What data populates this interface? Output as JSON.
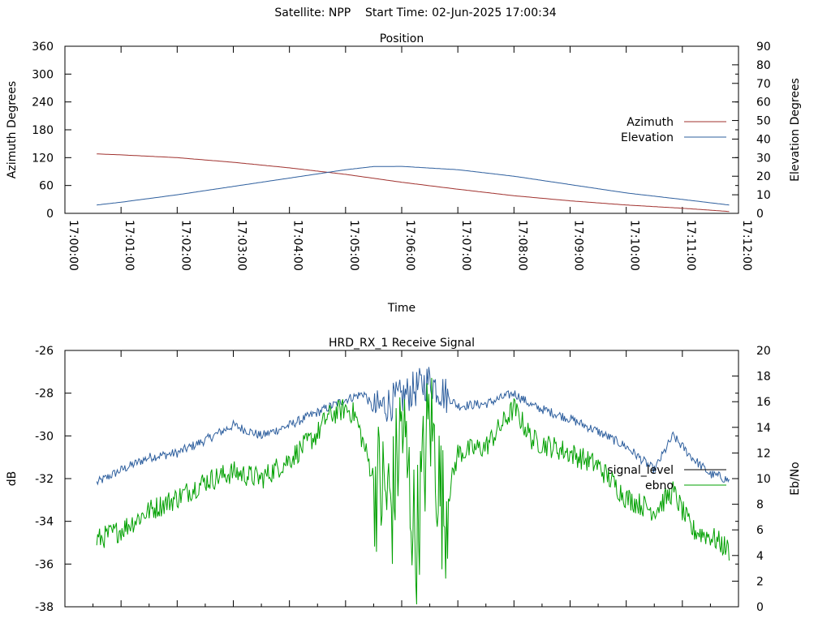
{
  "header": {
    "title": "Satellite: NPP    Start Time: 02-Jun-2025 17:00:34"
  },
  "chart_data": [
    {
      "type": "line",
      "title": "Position",
      "xlabel": "Time",
      "ylabel": "Azimuth Degrees",
      "y2label": "Elevation Degrees",
      "xlim_seconds": [
        0,
        720
      ],
      "ylim": [
        0,
        360
      ],
      "y2lim": [
        0,
        90
      ],
      "yticks": [
        "0",
        "60",
        "120",
        "180",
        "240",
        "300",
        "360"
      ],
      "y2ticks": [
        "0",
        "10",
        "20",
        "30",
        "40",
        "50",
        "60",
        "70",
        "80",
        "90"
      ],
      "xticks": [
        "17:00:00",
        "17:01:00",
        "17:02:00",
        "17:03:00",
        "17:04:00",
        "17:05:00",
        "17:06:00",
        "17:07:00",
        "17:08:00",
        "17:09:00",
        "17:10:00",
        "17:11:00",
        "17:12:00"
      ],
      "legend_position": "right",
      "grid": false,
      "series": [
        {
          "name": "Azimuth",
          "axis": "y",
          "color": "#a0312e",
          "x": [
            34,
            60,
            120,
            180,
            240,
            270,
            300,
            360,
            420,
            480,
            540,
            600,
            660,
            710
          ],
          "y": [
            128,
            126,
            120,
            110,
            98,
            91,
            84,
            67,
            52,
            38,
            27,
            18,
            11,
            4
          ]
        },
        {
          "name": "Elevation",
          "axis": "y2",
          "color": "#2e5f9e",
          "x": [
            34,
            60,
            120,
            180,
            240,
            300,
            330,
            360,
            420,
            480,
            540,
            600,
            660,
            710
          ],
          "y": [
            4.5,
            6,
            10,
            14.5,
            19,
            23.5,
            25.2,
            25.3,
            23.5,
            20,
            15.5,
            11,
            7.5,
            4.5
          ]
        }
      ]
    },
    {
      "type": "line",
      "title": "HRD_RX_1 Receive Signal",
      "xlabel": "",
      "ylabel": "dB",
      "y2label": "Eb/No",
      "xlim_seconds": [
        0,
        720
      ],
      "ylim": [
        -38,
        -26
      ],
      "y2lim": [
        0,
        20
      ],
      "yticks": [
        "-38",
        "-36",
        "-34",
        "-32",
        "-30",
        "-28",
        "-26"
      ],
      "y2ticks": [
        "0",
        "2",
        "4",
        "6",
        "8",
        "10",
        "12",
        "14",
        "16",
        "18",
        "20"
      ],
      "legend_position": "right",
      "grid": false,
      "series": [
        {
          "name": "signal_level",
          "axis": "y",
          "color": "#2e5f9e",
          "x": [
            34,
            60,
            90,
            120,
            150,
            180,
            210,
            240,
            270,
            300,
            320,
            330,
            360,
            390,
            420,
            450,
            480,
            500,
            540,
            570,
            600,
            630,
            650,
            670,
            690,
            700,
            710
          ],
          "y": [
            -32.2,
            -31.6,
            -31.0,
            -30.8,
            -30.2,
            -29.5,
            -30.0,
            -29.5,
            -28.9,
            -28.3,
            -28.0,
            -28.8,
            -28.2,
            -27.4,
            -28.6,
            -28.5,
            -28.0,
            -28.6,
            -29.2,
            -29.8,
            -30.5,
            -31.6,
            -30.0,
            -31.0,
            -31.8,
            -31.9,
            -32.1
          ]
        },
        {
          "name": "ebno",
          "axis": "y2",
          "color": "#00a000",
          "x": [
            34,
            60,
            90,
            120,
            150,
            180,
            210,
            240,
            270,
            280,
            300,
            310,
            320,
            330,
            340,
            350,
            360,
            375,
            390,
            405,
            420,
            450,
            480,
            500,
            540,
            570,
            600,
            630,
            650,
            670,
            690,
            700,
            710
          ],
          "y": [
            5.2,
            6.0,
            7.5,
            8.5,
            9.8,
            10.5,
            10.0,
            11.5,
            13.5,
            14.8,
            15.5,
            15.0,
            12.5,
            10.0,
            9.0,
            8.0,
            14.5,
            5.0,
            15.0,
            7.0,
            12.0,
            12.5,
            15.5,
            13.0,
            12.0,
            11.0,
            8.5,
            7.5,
            9.0,
            6.0,
            5.5,
            5.0,
            4.4
          ]
        }
      ]
    }
  ]
}
